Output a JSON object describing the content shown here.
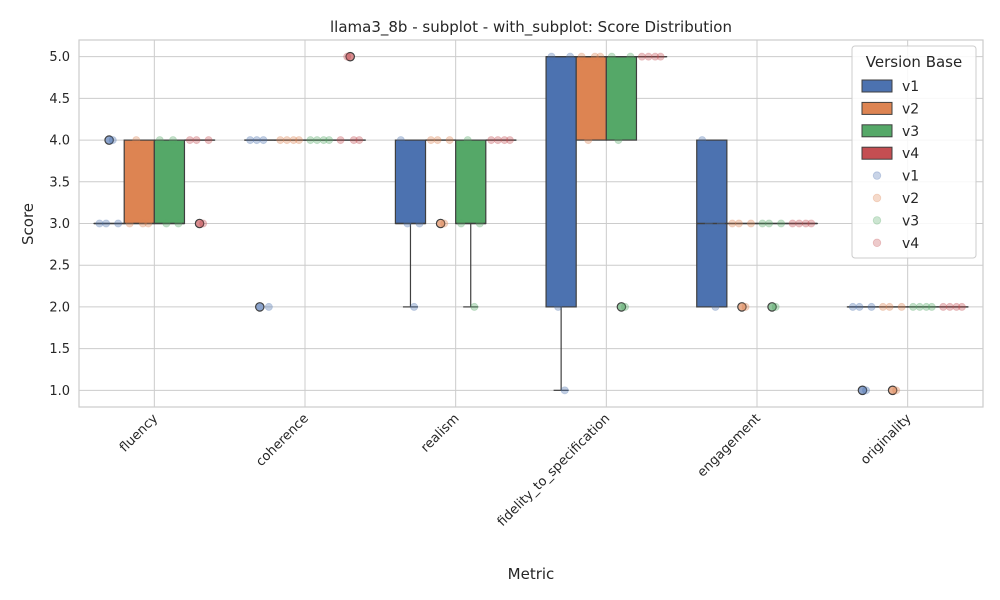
{
  "chart_data": {
    "type": "box",
    "title": "llama3_8b - subplot - with_subplot: Score Distribution",
    "xlabel": "Metric",
    "ylabel": "Score",
    "ylim": [
      0.8,
      5.2
    ],
    "yticks": [
      "1.0",
      "1.5",
      "2.0",
      "2.5",
      "3.0",
      "3.5",
      "4.0",
      "4.5",
      "5.0"
    ],
    "grid": true,
    "categories": [
      "fluency",
      "coherence",
      "realism",
      "fidelity_to_specification",
      "engagement",
      "originality"
    ],
    "legend": {
      "title": "Version Base",
      "placement": "top-right",
      "box_entries": [
        "v1",
        "v2",
        "v3",
        "v4"
      ],
      "point_entries": [
        "v1",
        "v2",
        "v3",
        "v4"
      ]
    },
    "colors": {
      "v1": "#4c72b0",
      "v2": "#dd8452",
      "v3": "#55a868",
      "v4": "#c44e52",
      "grid": "#cccccc",
      "edge": "#3f3f3f"
    },
    "series": [
      {
        "name": "v1",
        "boxes": [
          {
            "q1": 3,
            "median": 3,
            "q3": 3,
            "whislo": 3,
            "whishi": 3,
            "fliers": [
              4
            ]
          },
          {
            "q1": 4,
            "median": 4,
            "q3": 4,
            "whislo": 4,
            "whishi": 4,
            "fliers": [
              2
            ]
          },
          {
            "q1": 3,
            "median": 3,
            "q3": 4,
            "whislo": 2,
            "whishi": 4,
            "fliers": []
          },
          {
            "q1": 2,
            "median": 5,
            "q3": 5,
            "whislo": 1,
            "whishi": 5,
            "fliers": []
          },
          {
            "q1": 2,
            "median": 3,
            "q3": 4,
            "whislo": 2,
            "whishi": 4,
            "fliers": []
          },
          {
            "q1": 2,
            "median": 2,
            "q3": 2,
            "whislo": 2,
            "whishi": 2,
            "fliers": [
              1
            ]
          }
        ],
        "points": [
          [
            3,
            3,
            4,
            3
          ],
          [
            4,
            4,
            4,
            2
          ],
          [
            4,
            3,
            2,
            3
          ],
          [
            5,
            2,
            1,
            5
          ],
          [
            4,
            3,
            2,
            3
          ],
          [
            2,
            2,
            1,
            2
          ]
        ]
      },
      {
        "name": "v2",
        "boxes": [
          {
            "q1": 3,
            "median": 3,
            "q3": 4,
            "whislo": 3,
            "whishi": 4,
            "fliers": []
          },
          {
            "q1": 4,
            "median": 4,
            "q3": 4,
            "whislo": 4,
            "whishi": 4,
            "fliers": []
          },
          {
            "q1": 4,
            "median": 4,
            "q3": 4,
            "whislo": 4,
            "whishi": 4,
            "fliers": [
              3
            ]
          },
          {
            "q1": 4,
            "median": 5,
            "q3": 5,
            "whislo": 4,
            "whishi": 5,
            "fliers": []
          },
          {
            "q1": 3,
            "median": 3,
            "q3": 3,
            "whislo": 3,
            "whishi": 3,
            "fliers": [
              2
            ]
          },
          {
            "q1": 2,
            "median": 2,
            "q3": 2,
            "whislo": 2,
            "whishi": 2,
            "fliers": [
              1
            ]
          }
        ],
        "points": [
          [
            3,
            4,
            3,
            3
          ],
          [
            4,
            4,
            4,
            4
          ],
          [
            4,
            4,
            3,
            4
          ],
          [
            5,
            4,
            5,
            5
          ],
          [
            3,
            3,
            2,
            3
          ],
          [
            2,
            2,
            1,
            2
          ]
        ]
      },
      {
        "name": "v3",
        "boxes": [
          {
            "q1": 3,
            "median": 3,
            "q3": 4,
            "whislo": 3,
            "whishi": 4,
            "fliers": []
          },
          {
            "q1": 4,
            "median": 4,
            "q3": 4,
            "whislo": 4,
            "whishi": 4,
            "fliers": []
          },
          {
            "q1": 3,
            "median": 3,
            "q3": 4,
            "whislo": 2,
            "whishi": 4,
            "fliers": []
          },
          {
            "q1": 4,
            "median": 5,
            "q3": 5,
            "whislo": 4,
            "whishi": 5,
            "fliers": [
              2
            ]
          },
          {
            "q1": 3,
            "median": 3,
            "q3": 3,
            "whislo": 3,
            "whishi": 3,
            "fliers": [
              2
            ]
          },
          {
            "q1": 2,
            "median": 2,
            "q3": 2,
            "whislo": 2,
            "whishi": 2,
            "fliers": []
          }
        ],
        "points": [
          [
            4,
            3,
            4,
            3
          ],
          [
            4,
            4,
            4,
            4
          ],
          [
            3,
            4,
            2,
            3
          ],
          [
            5,
            4,
            2,
            5
          ],
          [
            3,
            3,
            2,
            3
          ],
          [
            2,
            2,
            2,
            2
          ]
        ]
      },
      {
        "name": "v4",
        "boxes": [
          {
            "q1": 4,
            "median": 4,
            "q3": 4,
            "whislo": 4,
            "whishi": 4,
            "fliers": [
              3
            ]
          },
          {
            "q1": 4,
            "median": 4,
            "q3": 4,
            "whislo": 4,
            "whishi": 4,
            "fliers": [
              5
            ]
          },
          {
            "q1": 4,
            "median": 4,
            "q3": 4,
            "whislo": 4,
            "whishi": 4,
            "fliers": []
          },
          {
            "q1": 5,
            "median": 5,
            "q3": 5,
            "whislo": 5,
            "whishi": 5,
            "fliers": []
          },
          {
            "q1": 3,
            "median": 3,
            "q3": 3,
            "whislo": 3,
            "whishi": 3,
            "fliers": []
          },
          {
            "q1": 2,
            "median": 2,
            "q3": 2,
            "whislo": 2,
            "whishi": 2,
            "fliers": []
          }
        ],
        "points": [
          [
            4,
            4,
            3,
            4
          ],
          [
            4,
            5,
            4,
            4
          ],
          [
            4,
            4,
            4,
            4
          ],
          [
            5,
            5,
            5,
            5
          ],
          [
            3,
            3,
            3,
            3
          ],
          [
            2,
            2,
            2,
            2
          ]
        ]
      }
    ]
  }
}
